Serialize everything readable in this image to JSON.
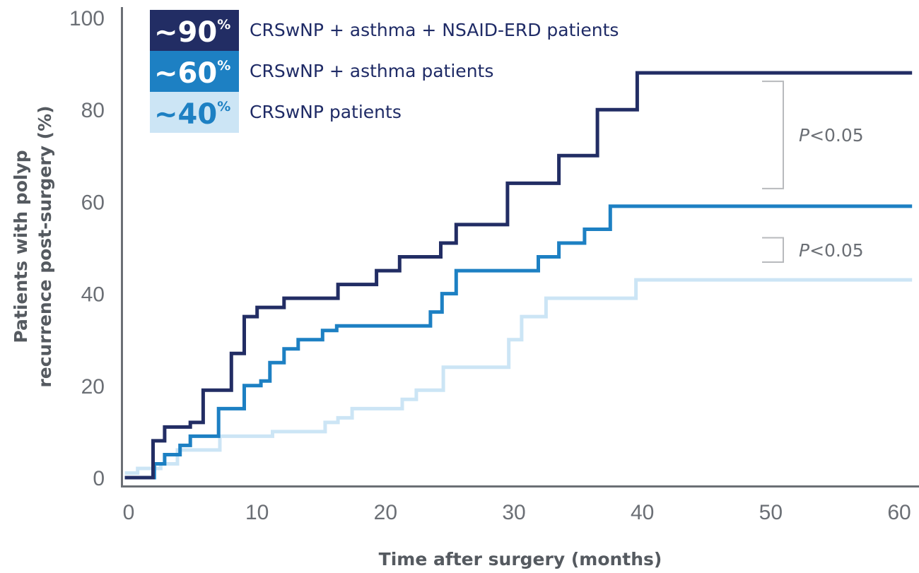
{
  "chart_data": {
    "type": "line",
    "step": true,
    "xlabel": "Time after surgery (months)",
    "ylabel_lines": [
      "Patients with polyp",
      "recurrence post-surgery (%)"
    ],
    "xlim": [
      0,
      61
    ],
    "ylim": [
      0,
      100
    ],
    "xticks": [
      0,
      10,
      20,
      30,
      40,
      50,
      60
    ],
    "yticks": [
      0,
      20,
      40,
      60,
      80,
      100
    ],
    "grid": false,
    "series": [
      {
        "name": "CRSwNP + asthma + NSAID-ERD patients",
        "legend_pct": "~90",
        "legend_pct_sup": "%",
        "color": "#222d64",
        "box_color": "#222d64",
        "pct_color": "#ffffff",
        "points": [
          [
            -0.3,
            0
          ],
          [
            1.9,
            0
          ],
          [
            1.9,
            8
          ],
          [
            2.8,
            8
          ],
          [
            2.8,
            11
          ],
          [
            4.8,
            11
          ],
          [
            4.8,
            12
          ],
          [
            5.8,
            12
          ],
          [
            5.8,
            19
          ],
          [
            8.0,
            19
          ],
          [
            8.0,
            27
          ],
          [
            9.0,
            27
          ],
          [
            9.0,
            35
          ],
          [
            10.0,
            35
          ],
          [
            10.0,
            37
          ],
          [
            12.1,
            37
          ],
          [
            12.1,
            39
          ],
          [
            16.3,
            39
          ],
          [
            16.3,
            42
          ],
          [
            19.3,
            42
          ],
          [
            19.3,
            45
          ],
          [
            21.1,
            45
          ],
          [
            21.1,
            48
          ],
          [
            24.3,
            48
          ],
          [
            24.3,
            51
          ],
          [
            25.5,
            51
          ],
          [
            25.5,
            55
          ],
          [
            29.5,
            55
          ],
          [
            29.5,
            64
          ],
          [
            33.5,
            64
          ],
          [
            33.5,
            70
          ],
          [
            36.5,
            70
          ],
          [
            36.5,
            80
          ],
          [
            39.6,
            80
          ],
          [
            39.6,
            88
          ],
          [
            61,
            88
          ]
        ]
      },
      {
        "name": "CRSwNP + asthma patients",
        "legend_pct": "~60",
        "legend_pct_sup": "%",
        "color": "#1d80c3",
        "box_color": "#1d80c3",
        "pct_color": "#ffffff",
        "points": [
          [
            -0.3,
            0
          ],
          [
            2.0,
            0
          ],
          [
            2.0,
            3
          ],
          [
            2.8,
            3
          ],
          [
            2.8,
            5
          ],
          [
            4.0,
            5
          ],
          [
            4.0,
            7
          ],
          [
            4.8,
            7
          ],
          [
            4.8,
            9
          ],
          [
            7.0,
            9
          ],
          [
            7.0,
            15
          ],
          [
            9.0,
            15
          ],
          [
            9.0,
            20
          ],
          [
            10.3,
            20
          ],
          [
            10.3,
            21
          ],
          [
            11.0,
            21
          ],
          [
            11.0,
            25
          ],
          [
            12.1,
            25
          ],
          [
            12.1,
            28
          ],
          [
            13.2,
            28
          ],
          [
            13.2,
            30
          ],
          [
            15.1,
            30
          ],
          [
            15.1,
            32
          ],
          [
            16.2,
            32
          ],
          [
            16.2,
            33
          ],
          [
            23.5,
            33
          ],
          [
            23.5,
            36
          ],
          [
            24.4,
            36
          ],
          [
            24.4,
            40
          ],
          [
            25.5,
            40
          ],
          [
            25.5,
            45
          ],
          [
            31.9,
            45
          ],
          [
            31.9,
            48
          ],
          [
            33.5,
            48
          ],
          [
            33.5,
            51
          ],
          [
            35.5,
            51
          ],
          [
            35.5,
            54
          ],
          [
            37.5,
            54
          ],
          [
            37.5,
            59
          ],
          [
            61,
            59
          ]
        ]
      },
      {
        "name": "CRSwNP patients",
        "legend_pct": "~40",
        "legend_pct_sup": "%",
        "color": "#cce5f5",
        "box_color": "#cce5f5",
        "pct_color": "#1d80c3",
        "points": [
          [
            -0.3,
            1
          ],
          [
            0.7,
            1
          ],
          [
            0.7,
            2
          ],
          [
            2.5,
            2
          ],
          [
            2.5,
            3
          ],
          [
            3.8,
            3
          ],
          [
            3.8,
            6
          ],
          [
            7.1,
            6
          ],
          [
            7.1,
            9
          ],
          [
            11.2,
            9
          ],
          [
            11.2,
            10
          ],
          [
            15.3,
            10
          ],
          [
            15.3,
            12
          ],
          [
            16.3,
            12
          ],
          [
            16.3,
            13
          ],
          [
            17.4,
            13
          ],
          [
            17.4,
            15
          ],
          [
            21.3,
            15
          ],
          [
            21.3,
            17
          ],
          [
            22.4,
            17
          ],
          [
            22.4,
            19
          ],
          [
            24.5,
            19
          ],
          [
            24.5,
            24
          ],
          [
            29.6,
            24
          ],
          [
            29.6,
            30
          ],
          [
            30.6,
            30
          ],
          [
            30.6,
            35
          ],
          [
            32.5,
            35
          ],
          [
            32.5,
            39
          ],
          [
            39.5,
            39
          ],
          [
            39.5,
            43
          ],
          [
            61,
            43
          ]
        ]
      }
    ],
    "annotations": [
      {
        "label_italic": "P",
        "label_rest": "<0.05",
        "between": [
          88,
          61
        ]
      },
      {
        "label_italic": "P",
        "label_rest": "<0.05",
        "between": [
          54,
          45
        ]
      }
    ]
  }
}
